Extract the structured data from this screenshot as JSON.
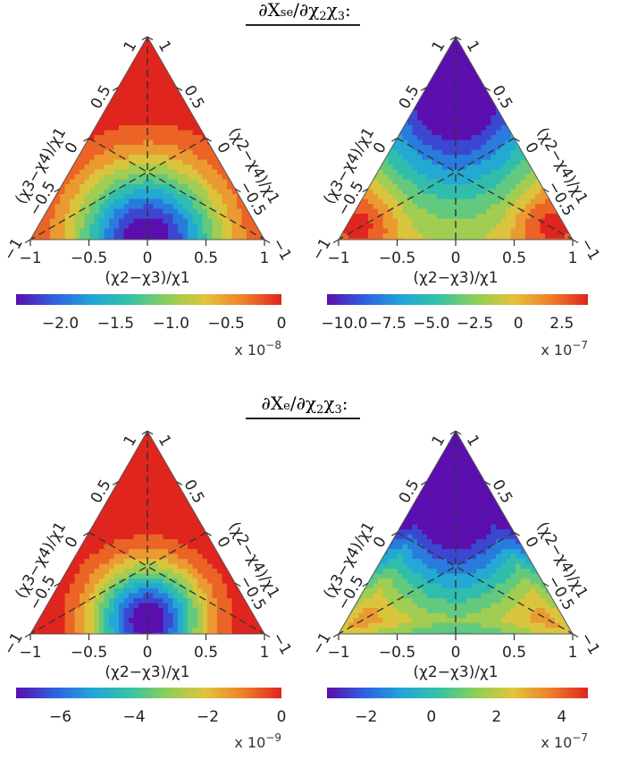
{
  "chart_data": {
    "panels": [
      {
        "type": "heatmap",
        "group": 0,
        "left_axis_label": "(χ3−χ4)/χ1",
        "right_axis_label": "(χ2−χ4)/χ1",
        "bottom_axis_label": "(χ2−χ3)/χ1",
        "bottom_ticks": [
          "−1",
          "−0.5",
          "0",
          "0.5",
          "1"
        ],
        "side_ticks": [
          "1",
          "0.5",
          "0",
          "−0.5",
          "−1"
        ],
        "features": [
          {
            "x": 0.0,
            "y": 0.0,
            "value": -2.4,
            "sigma": 0.45
          }
        ],
        "colorbar": {
          "min": -2.4,
          "max": 0.0,
          "ticks": [
            -2.0,
            -1.5,
            -1.0,
            -0.5,
            0.0
          ],
          "tick_labels": [
            "−2.0",
            "−1.5",
            "−1.0",
            "−0.5",
            "0"
          ]
        },
        "multiplier": "x 10",
        "multiplier_exp": "−8"
      },
      {
        "type": "heatmap",
        "group": 0,
        "left_axis_label": "(χ3−χ4)/χ1",
        "right_axis_label": "(χ2−χ4)/χ1",
        "bottom_axis_label": "(χ2−χ3)/χ1",
        "bottom_ticks": [
          "−1",
          "−0.5",
          "0",
          "0.5",
          "1"
        ],
        "side_ticks": [
          "1",
          "0.5",
          "0",
          "−0.5",
          "−1"
        ],
        "base": 0.8,
        "features": [
          {
            "x": 0.0,
            "y": 1.35,
            "value": -11.8,
            "sigma": 0.55
          },
          {
            "x": 0.0,
            "y": 0.55,
            "value": -3.0,
            "sigma": 0.6
          },
          {
            "x": -0.8,
            "y": 0.15,
            "value": 3.6,
            "sigma": 0.22
          },
          {
            "x": 0.8,
            "y": 0.15,
            "value": 3.6,
            "sigma": 0.22
          }
        ],
        "colorbar": {
          "min": -11.0,
          "max": 4.0,
          "ticks": [
            -10.0,
            -7.5,
            -5.0,
            -2.5,
            0.0,
            2.5
          ],
          "tick_labels": [
            "−10.0",
            "−7.5",
            "−5.0",
            "−2.5",
            "0",
            "2.5"
          ]
        },
        "multiplier": "x 10",
        "multiplier_exp": "−7"
      },
      {
        "type": "heatmap",
        "group": 1,
        "left_axis_label": "(χ3−χ4)/χ1",
        "right_axis_label": "(χ2−χ4)/χ1",
        "bottom_axis_label": "(χ2−χ3)/χ1",
        "bottom_ticks": [
          "−1",
          "−0.5",
          "0",
          "0.5",
          "1"
        ],
        "side_ticks": [
          "1",
          "0.5",
          "0",
          "−0.5",
          "−1"
        ],
        "features": [
          {
            "x": 0.0,
            "y": 0.12,
            "value": -7.2,
            "sigma": 0.33
          }
        ],
        "colorbar": {
          "min": -7.2,
          "max": 0.0,
          "ticks": [
            -6,
            -4,
            -2,
            0
          ],
          "tick_labels": [
            "−6",
            "−4",
            "−2",
            "0"
          ]
        },
        "multiplier": "x 10",
        "multiplier_exp": "−9"
      },
      {
        "type": "heatmap",
        "group": 1,
        "left_axis_label": "(χ3−χ4)/χ1",
        "right_axis_label": "(χ2−χ4)/χ1",
        "bottom_axis_label": "(χ2−χ3)/χ1",
        "bottom_ticks": [
          "−1",
          "−0.5",
          "0",
          "0.5",
          "1"
        ],
        "side_ticks": [
          "1",
          "0.5",
          "0",
          "−0.5",
          "−1"
        ],
        "base": 4.5,
        "features": [
          {
            "x": 0.0,
            "y": 1.4,
            "value": -8.0,
            "sigma": 0.6
          },
          {
            "x": 0.0,
            "y": 0.55,
            "value": -2.5,
            "sigma": 0.55
          },
          {
            "x": 0.0,
            "y": 0.0,
            "value": -0.5,
            "sigma": 0.9
          }
        ],
        "edge_fade": {
          "width": 0.12,
          "value": -1.5
        },
        "colorbar": {
          "min": -3.2,
          "max": 4.8,
          "ticks": [
            -2,
            0,
            2,
            4
          ],
          "tick_labels": [
            "−2",
            "0",
            "2",
            "4"
          ]
        },
        "multiplier": "x 10",
        "multiplier_exp": "−7"
      }
    ],
    "group_titles": [
      {
        "prefix": "∂X",
        "sub": "se",
        "suffix": "/∂χ",
        "s1": "2",
        "mid": "χ",
        "s2": "3",
        "end": ":"
      },
      {
        "prefix": "∂X",
        "sub": "e",
        "suffix": "/∂χ",
        "s1": "2",
        "mid": "χ",
        "s2": "3",
        "end": ":"
      }
    ],
    "colormap": [
      "#5a0fae",
      "#2f5fe0",
      "#21a6d8",
      "#34c3a4",
      "#8fcf58",
      "#e3c33a",
      "#ef7f2a",
      "#e0241e"
    ]
  }
}
